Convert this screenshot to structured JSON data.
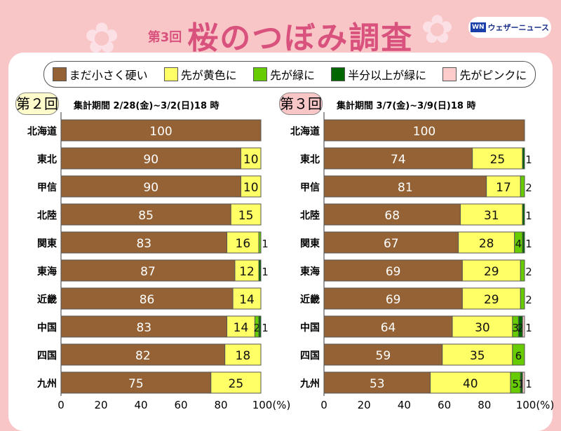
{
  "header": {
    "round": "第3回",
    "title": "桜のつぼみ調査",
    "logo_mark": "WN",
    "logo_text": "ウェザーニュース"
  },
  "legend": [
    {
      "label": "まだ小さく硬い",
      "color": "#946234"
    },
    {
      "label": "先が黄色に",
      "color": "#ffff66"
    },
    {
      "label": "先が緑に",
      "color": "#66cc00"
    },
    {
      "label": "半分以上が緑に",
      "color": "#006600"
    },
    {
      "label": "先がピンクに",
      "color": "#ffcccc"
    }
  ],
  "chart_data": [
    {
      "type": "bar",
      "stacked": true,
      "orientation": "horizontal",
      "badge": "第２回",
      "badge_color": "#fffccc",
      "title": "集計期間 2/28(金)~3/2(日)18 時",
      "categories": [
        "北海道",
        "東北",
        "甲信",
        "北陸",
        "関東",
        "東海",
        "近畿",
        "中国",
        "四国",
        "九州"
      ],
      "series": [
        {
          "name": "まだ小さく硬い",
          "values": [
            100,
            90,
            90,
            85,
            83,
            87,
            86,
            83,
            82,
            75
          ]
        },
        {
          "name": "先が黄色に",
          "values": [
            0,
            10,
            10,
            15,
            16,
            12,
            14,
            14,
            18,
            25
          ]
        },
        {
          "name": "先が緑に",
          "values": [
            0,
            0,
            0,
            0,
            1,
            0,
            0,
            2,
            0,
            0
          ]
        },
        {
          "name": "半分以上が緑に",
          "values": [
            0,
            0,
            0,
            0,
            0,
            1,
            0,
            1,
            0,
            0
          ]
        },
        {
          "name": "先がピンクに",
          "values": [
            0,
            0,
            0,
            0,
            0,
            0,
            0,
            0,
            0,
            0
          ]
        }
      ],
      "xlim": [
        0,
        100
      ],
      "xticks": [
        "0",
        "20",
        "40",
        "60",
        "80",
        "100(%)"
      ]
    },
    {
      "type": "bar",
      "stacked": true,
      "orientation": "horizontal",
      "badge": "第３回",
      "badge_color": "#f9c6c8",
      "title": "集計期間 3/7(金)~3/9(日)18 時",
      "categories": [
        "北海道",
        "東北",
        "甲信",
        "北陸",
        "関東",
        "東海",
        "近畿",
        "中国",
        "四国",
        "九州"
      ],
      "series": [
        {
          "name": "まだ小さく硬い",
          "values": [
            100,
            74,
            81,
            68,
            67,
            69,
            69,
            64,
            59,
            53
          ]
        },
        {
          "name": "先が黄色に",
          "values": [
            0,
            25,
            17,
            31,
            28,
            29,
            29,
            30,
            35,
            40
          ]
        },
        {
          "name": "先が緑に",
          "values": [
            0,
            0,
            2,
            0,
            4,
            2,
            2,
            3,
            6,
            5
          ]
        },
        {
          "name": "半分以上が緑に",
          "values": [
            0,
            1,
            0,
            1,
            1,
            0,
            0,
            2,
            0,
            1
          ]
        },
        {
          "name": "先がピンクに",
          "values": [
            0,
            0,
            0,
            0,
            0,
            0,
            0,
            1,
            0,
            1
          ]
        }
      ],
      "xlim": [
        0,
        100
      ],
      "xticks": [
        "0",
        "20",
        "40",
        "60",
        "80",
        "100(%)"
      ]
    }
  ]
}
